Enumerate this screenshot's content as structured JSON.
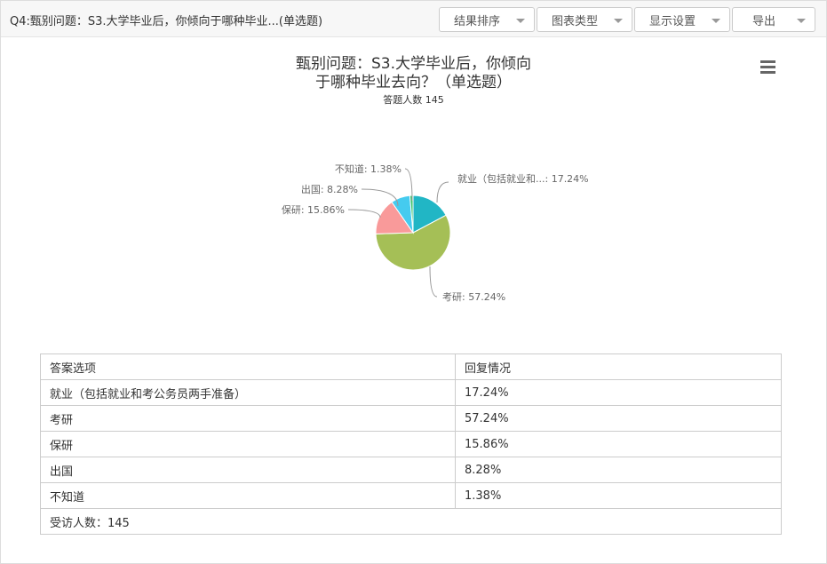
{
  "header": {
    "question": "Q4:甄别问题：S3.大学毕业后，你倾向于哪种毕业...(单选题)",
    "buttons": [
      "结果排序",
      "图表类型",
      "显示设置",
      "导出"
    ]
  },
  "chart_data": {
    "type": "pie",
    "title_line1": "甄别问题：S3.大学毕业后，你倾向",
    "title_line2": "于哪种毕业去向？（单选题）",
    "subtitle": "答题人数 145",
    "categories": [
      "就业（包括就业和考公务员两手准备）",
      "考研",
      "保研",
      "出国",
      "不知道"
    ],
    "labels": [
      "就业（包括就业和...: 17.24%",
      "考研: 57.24%",
      "保研: 15.86%",
      "出国: 8.28%",
      "不知道: 1.38%"
    ],
    "values": [
      17.24,
      57.24,
      15.86,
      8.28,
      1.38
    ],
    "colors": [
      "#21b6c5",
      "#a5bf56",
      "#f99a9a",
      "#45cbef",
      "#3fc36b"
    ]
  },
  "table": {
    "headers": [
      "答案选项",
      "回复情况"
    ],
    "rows": [
      [
        "就业（包括就业和考公务员两手准备）",
        "17.24%"
      ],
      [
        "考研",
        "57.24%"
      ],
      [
        "保研",
        "15.86%"
      ],
      [
        "出国",
        "8.28%"
      ],
      [
        "不知道",
        "1.38%"
      ]
    ],
    "footer": "受访人数：145"
  }
}
